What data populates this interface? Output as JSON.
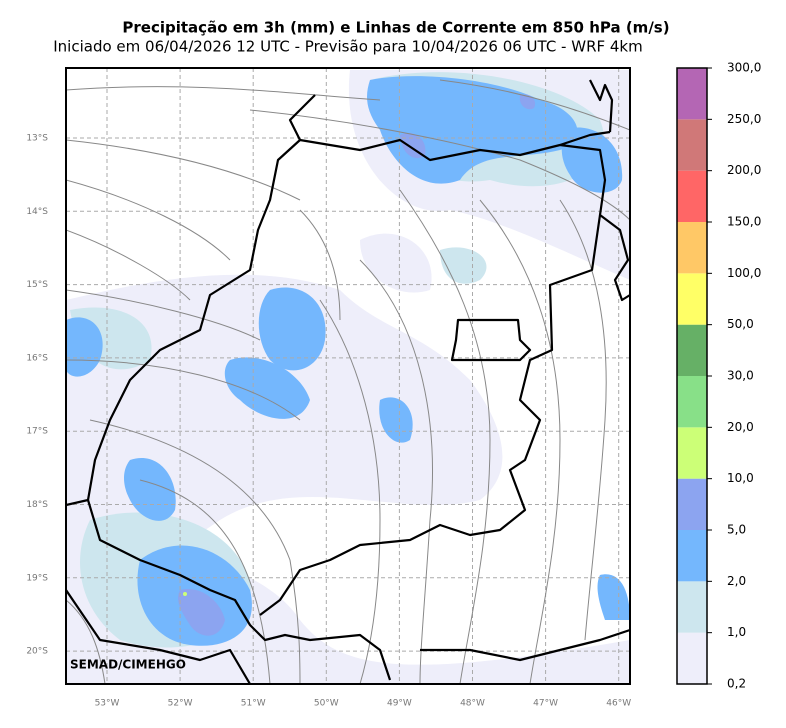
{
  "title": "Precipitação em 3h (mm) e Linhas de Corrente em 850 hPa (m/s)",
  "subtitle": "Iniciado em 06/04/2026 12 UTC - Previsão para 10/04/2026 06 UTC - WRF 4km",
  "latitude_labels": [
    "13°S",
    "14°S",
    "15°S",
    "16°S",
    "17°S",
    "18°S",
    "19°S",
    "20°S"
  ],
  "longitude_labels": [
    "53°W",
    "52°W",
    "51°W",
    "50°W",
    "49°W",
    "48°W",
    "47°W",
    "46°W"
  ],
  "credit": "SEMAD/CIMEHGO",
  "colorbar": {
    "ticks": [
      {
        "value": 0.2,
        "label": "0,2"
      },
      {
        "value": 1,
        "label": "1,0"
      },
      {
        "value": 2,
        "label": "2,0"
      },
      {
        "value": 5,
        "label": "5,0"
      },
      {
        "value": 10,
        "label": "10,0"
      },
      {
        "value": 20,
        "label": "20,0"
      },
      {
        "value": 30,
        "label": "30,0"
      },
      {
        "value": 50,
        "label": "50,0"
      },
      {
        "value": 100,
        "label": "100,0"
      },
      {
        "value": 150,
        "label": "150,0"
      },
      {
        "value": 200,
        "label": "200,0"
      },
      {
        "value": 250,
        "label": "250,0"
      },
      {
        "value": 300,
        "label": "300,0"
      }
    ],
    "colors": [
      "#eeeefa",
      "#cde6ee",
      "#74b7fd",
      "#8ca4f0",
      "#ccff77",
      "#88e088",
      "#66b066",
      "#ffff66",
      "#ffc866",
      "#ff6666",
      "#d07878",
      "#b466b4"
    ]
  }
}
